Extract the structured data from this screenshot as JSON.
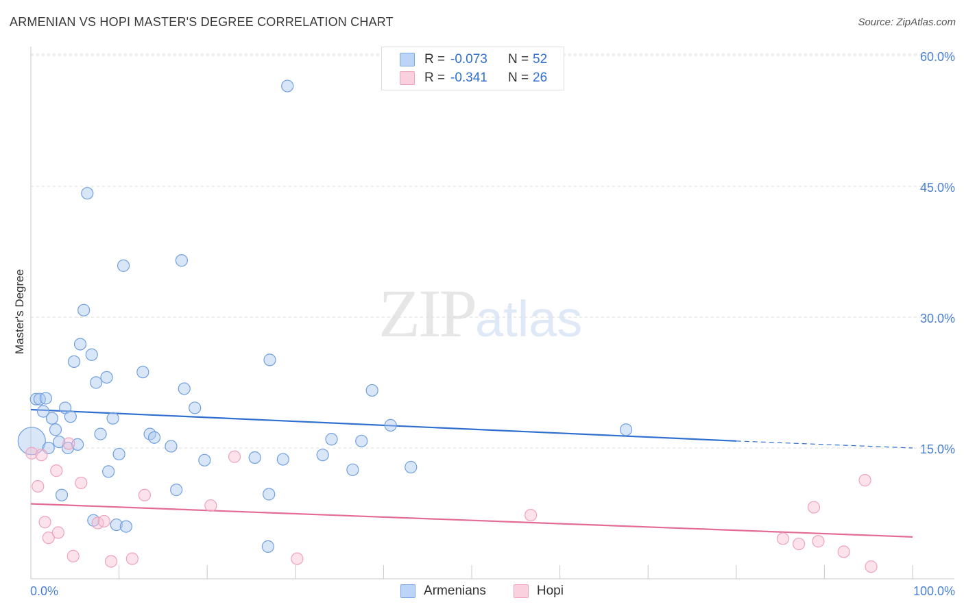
{
  "header": {
    "title": "ARMENIAN VS HOPI MASTER'S DEGREE CORRELATION CHART",
    "source": "Source: ZipAtlas.com"
  },
  "watermark": {
    "zip": "ZIP",
    "atlas": "atlas"
  },
  "legend": {
    "armenians": {
      "r_label": "R =",
      "r_value": "-0.073",
      "n_label": "N =",
      "n_value": "52"
    },
    "hopi": {
      "r_label": "R =",
      "r_value": "-0.341",
      "n_label": "N =",
      "n_value": "26"
    }
  },
  "chart_data": {
    "type": "scatter",
    "title": "ARMENIAN VS HOPI MASTER'S DEGREE CORRELATION CHART",
    "xlabel": "",
    "ylabel": "Master's Degree",
    "xlim": [
      0,
      100
    ],
    "ylim": [
      0,
      63
    ],
    "x_tick_labels": [
      "0.0%",
      "100.0%"
    ],
    "y_ticks": [
      15,
      30,
      45,
      60
    ],
    "y_tick_labels": [
      "15.0%",
      "30.0%",
      "45.0%",
      "60.0%"
    ],
    "colors": {
      "armenians": "#7aa8e6",
      "hopi": "#f0a3bd",
      "armenians_line": "#2f6fcf",
      "hopi_line": "#e36b95"
    },
    "series": [
      {
        "name": "Armenians",
        "points": [
          [
            0.1,
            15.8
          ],
          [
            0.6,
            20.6
          ],
          [
            1.0,
            20.6
          ],
          [
            1.4,
            19.2
          ],
          [
            1.7,
            20.7
          ],
          [
            2.0,
            15.0
          ],
          [
            2.4,
            18.4
          ],
          [
            2.8,
            17.1
          ],
          [
            3.2,
            15.7
          ],
          [
            3.5,
            9.6
          ],
          [
            3.9,
            19.6
          ],
          [
            4.2,
            15.0
          ],
          [
            4.5,
            18.6
          ],
          [
            5.3,
            15.4
          ],
          [
            4.9,
            24.9
          ],
          [
            5.6,
            26.9
          ],
          [
            6.0,
            30.8
          ],
          [
            6.4,
            44.2
          ],
          [
            6.9,
            25.7
          ],
          [
            7.1,
            6.7
          ],
          [
            7.4,
            22.5
          ],
          [
            7.9,
            16.6
          ],
          [
            8.6,
            23.1
          ],
          [
            8.8,
            12.3
          ],
          [
            9.3,
            18.4
          ],
          [
            9.7,
            6.2
          ],
          [
            10.0,
            14.3
          ],
          [
            10.5,
            35.9
          ],
          [
            10.8,
            6.0
          ],
          [
            12.7,
            23.7
          ],
          [
            13.5,
            16.6
          ],
          [
            14.0,
            16.2
          ],
          [
            15.9,
            15.2
          ],
          [
            16.5,
            10.2
          ],
          [
            17.1,
            36.5
          ],
          [
            17.4,
            21.8
          ],
          [
            18.6,
            19.6
          ],
          [
            19.7,
            13.6
          ],
          [
            25.4,
            13.9
          ],
          [
            26.9,
            3.7
          ],
          [
            29.1,
            56.5
          ],
          [
            27.1,
            25.1
          ],
          [
            27.0,
            9.7
          ],
          [
            28.6,
            13.7
          ],
          [
            33.1,
            14.2
          ],
          [
            34.1,
            16.0
          ],
          [
            36.5,
            12.5
          ],
          [
            37.5,
            15.8
          ],
          [
            38.7,
            21.6
          ],
          [
            40.8,
            17.6
          ],
          [
            43.1,
            12.8
          ],
          [
            67.5,
            17.1
          ]
        ]
      },
      {
        "name": "Hopi",
        "points": [
          [
            0.1,
            14.4
          ],
          [
            0.8,
            10.6
          ],
          [
            1.2,
            14.2
          ],
          [
            1.6,
            6.5
          ],
          [
            2.0,
            4.7
          ],
          [
            2.9,
            12.4
          ],
          [
            3.1,
            5.3
          ],
          [
            4.3,
            15.5
          ],
          [
            4.8,
            2.6
          ],
          [
            5.7,
            11.0
          ],
          [
            7.6,
            6.4
          ],
          [
            8.3,
            6.6
          ],
          [
            9.1,
            2.0
          ],
          [
            11.5,
            2.3
          ],
          [
            12.9,
            9.6
          ],
          [
            20.4,
            8.4
          ],
          [
            23.1,
            14.0
          ],
          [
            30.2,
            2.3
          ],
          [
            56.7,
            7.3
          ],
          [
            85.3,
            4.6
          ],
          [
            87.1,
            4.0
          ],
          [
            88.8,
            8.2
          ],
          [
            89.3,
            4.3
          ],
          [
            92.2,
            3.1
          ],
          [
            94.6,
            11.3
          ],
          [
            95.3,
            1.4
          ]
        ]
      }
    ],
    "trendlines": [
      {
        "name": "Armenians",
        "x": [
          0,
          80,
          100
        ],
        "y": [
          19.4,
          15.8,
          15.0
        ],
        "dashed_from": 80
      },
      {
        "name": "Hopi",
        "x": [
          0,
          100
        ],
        "y": [
          8.6,
          4.8
        ]
      }
    ]
  },
  "bottom_legend": {
    "armenians": "Armenians",
    "hopi": "Hopi"
  }
}
